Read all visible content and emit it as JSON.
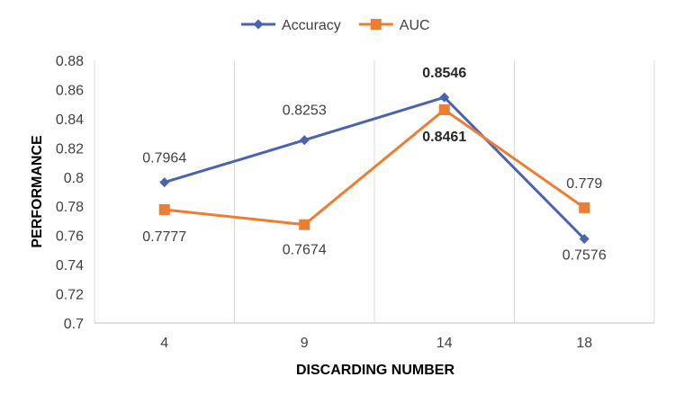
{
  "chart_data": {
    "type": "line",
    "categories": [
      "4",
      "9",
      "14",
      "18"
    ],
    "series": [
      {
        "name": "Accuracy",
        "values": [
          0.7964,
          0.8253,
          0.8546,
          0.7576
        ],
        "labels": [
          "0.7964",
          "0.8253",
          "0.8546",
          "0.7576"
        ],
        "color": "#4A63B0",
        "marker": "diamond"
      },
      {
        "name": "AUC",
        "values": [
          0.7777,
          0.7674,
          0.8461,
          0.779
        ],
        "labels": [
          "0.7777",
          "0.7674",
          "0.8461",
          "0.779"
        ],
        "color": "#ED7D31",
        "marker": "square"
      }
    ],
    "xlabel": "DISCARDING NUMBER",
    "ylabel": "PERFORMANCE",
    "ylim": [
      0.7,
      0.88
    ],
    "yticks": [
      "0.7",
      "0.72",
      "0.74",
      "0.76",
      "0.78",
      "0.8",
      "0.82",
      "0.84",
      "0.86",
      "0.88"
    ],
    "grid": "vertical",
    "legend": "top-center"
  }
}
